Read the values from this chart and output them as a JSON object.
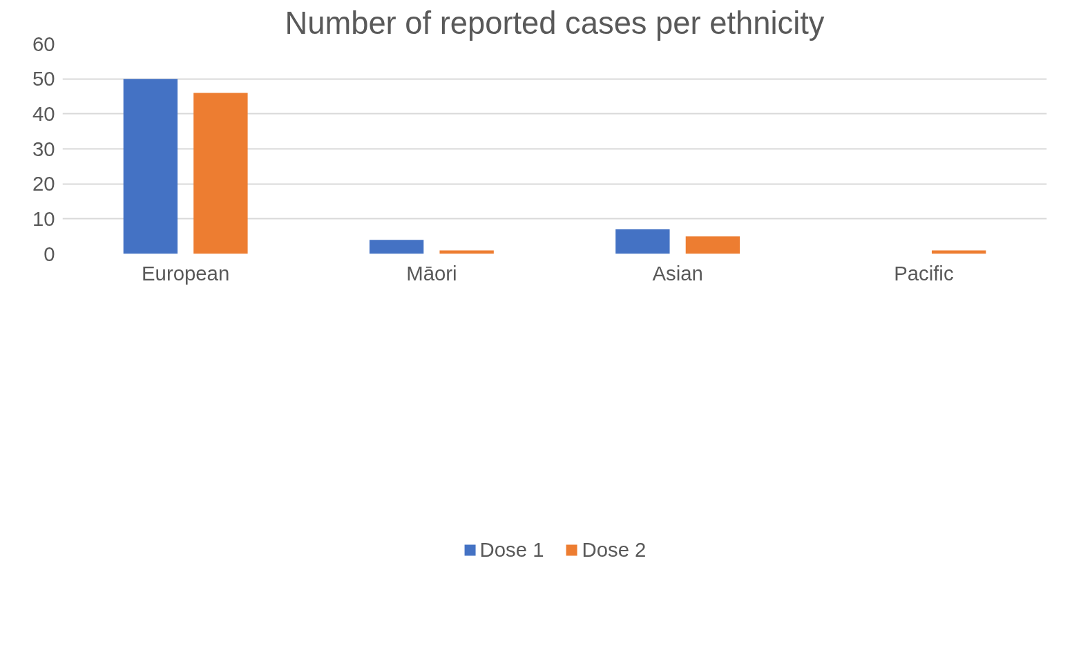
{
  "chart_data": {
    "type": "bar",
    "title": "Number of reported cases per ethnicity",
    "categories": [
      "European",
      "Māori",
      "Asian",
      "Pacific"
    ],
    "series": [
      {
        "name": "Dose 1",
        "color": "#4472c4",
        "values": [
          50,
          4,
          7,
          0
        ]
      },
      {
        "name": "Dose 2",
        "color": "#ed7d31",
        "values": [
          46,
          1,
          5,
          1
        ]
      }
    ],
    "ylim": [
      0,
      60
    ],
    "yticks": [
      0,
      10,
      20,
      30,
      40,
      50,
      60
    ],
    "grid": "y",
    "legend": "bottom"
  }
}
